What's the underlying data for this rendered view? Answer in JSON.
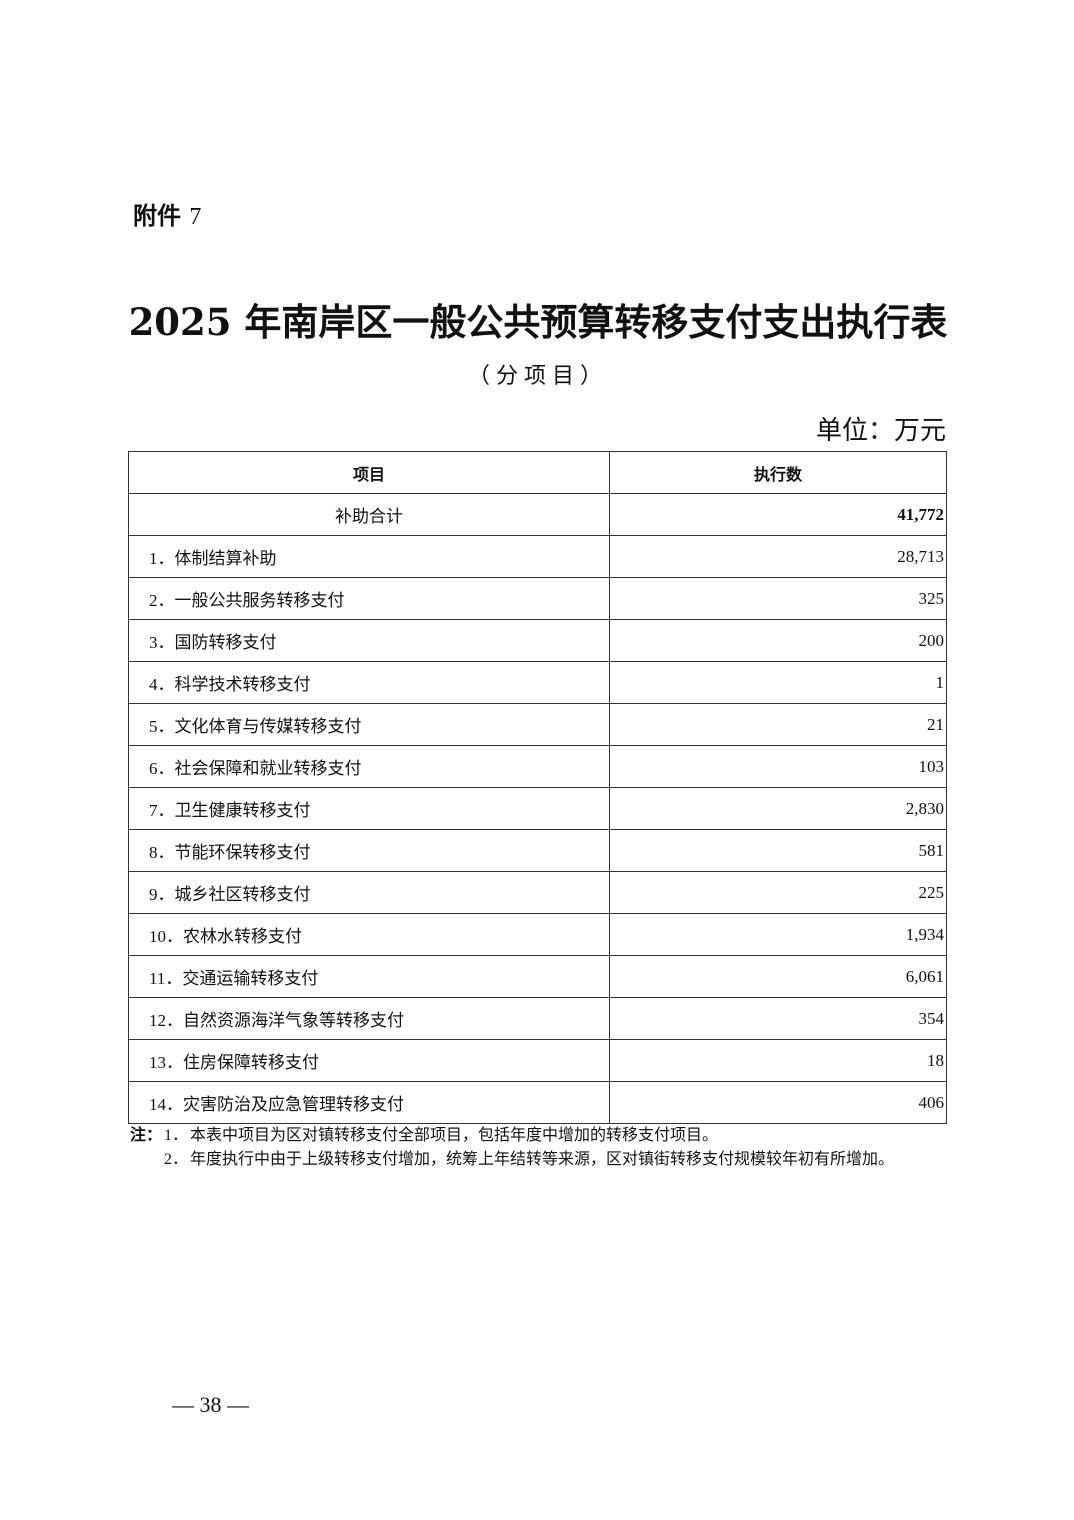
{
  "attachment": {
    "label": "附件",
    "number": "7"
  },
  "title": "2025 年南岸区一般公共预算转移支付支出执行表",
  "subtitle": "（分项目）",
  "unit": "单位：万元",
  "table": {
    "headers": [
      "项目",
      "执行数"
    ],
    "total": {
      "name": "补助合计",
      "value": "41,772"
    },
    "rows": [
      {
        "name": "1．体制结算补助",
        "value": "28,713"
      },
      {
        "name": "2．一般公共服务转移支付",
        "value": "325"
      },
      {
        "name": "3．国防转移支付",
        "value": "200"
      },
      {
        "name": "4．科学技术转移支付",
        "value": "1"
      },
      {
        "name": "5．文化体育与传媒转移支付",
        "value": "21"
      },
      {
        "name": "6．社会保障和就业转移支付",
        "value": "103"
      },
      {
        "name": "7．卫生健康转移支付",
        "value": "2,830"
      },
      {
        "name": "8．节能环保转移支付",
        "value": "581"
      },
      {
        "name": "9．城乡社区转移支付",
        "value": "225"
      },
      {
        "name": "10．农林水转移支付",
        "value": "1,934"
      },
      {
        "name": "11．交通运输转移支付",
        "value": "6,061"
      },
      {
        "name": "12．自然资源海洋气象等转移支付",
        "value": "354"
      },
      {
        "name": "13．住房保障转移支付",
        "value": "18"
      },
      {
        "name": "14．灾害防治及应急管理转移支付",
        "value": "406"
      }
    ]
  },
  "notes": {
    "label": "注：",
    "items": [
      {
        "num": "1．",
        "text": "本表中项目为区对镇转移支付全部项目，包括年度中增加的转移支付项目。"
      },
      {
        "num": "2．",
        "text": "年度执行中由于上级转移支付增加，统筹上年结转等来源，区对镇街转移支付规模较年初有所增加。"
      }
    ]
  },
  "page_number": "— 38 —"
}
